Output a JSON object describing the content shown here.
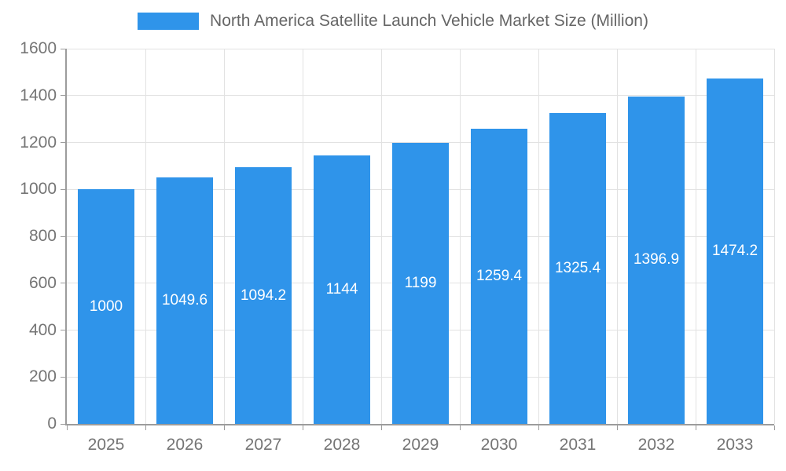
{
  "chart_data": {
    "type": "bar",
    "title": "North America Satellite Launch Vehicle Market Size (Million)",
    "categories": [
      "2025",
      "2026",
      "2027",
      "2028",
      "2029",
      "2030",
      "2031",
      "2032",
      "2033"
    ],
    "values": [
      1000,
      1049.6,
      1094.2,
      1144,
      1199,
      1259.4,
      1325.4,
      1396.9,
      1474.2
    ],
    "xlabel": "",
    "ylabel": "",
    "ylim": [
      0,
      1600
    ],
    "yticks": [
      0,
      200,
      400,
      600,
      800,
      1000,
      1200,
      1400,
      1600
    ],
    "grid": true,
    "legend_position": "top",
    "value_labels": "centered-inside-bars"
  },
  "colors": {
    "bar": "#2f94ea",
    "title_text": "#666666",
    "tick_text": "#757575",
    "grid_line": "#e2e2e2",
    "axis_line": "#9c9c9c",
    "value_label_text": "#ffffff",
    "background": "#ffffff"
  }
}
